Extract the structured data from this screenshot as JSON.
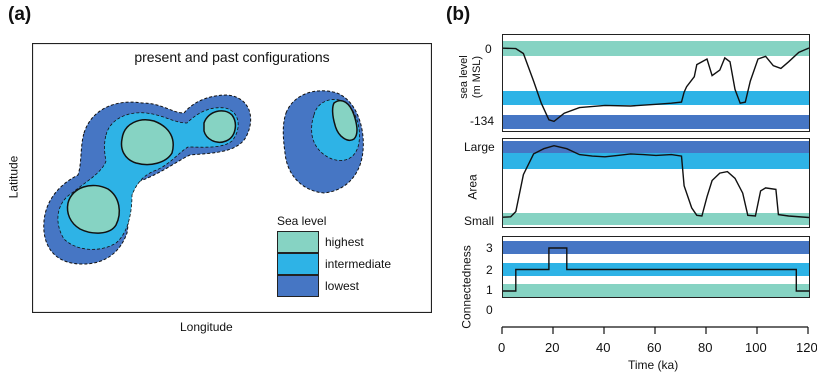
{
  "panel_a": {
    "label": "(a)",
    "title": "present and past configurations",
    "xlabel": "Longitude",
    "ylabel": "Latitude",
    "legend": {
      "title": "Sea level",
      "items": [
        {
          "label": "highest",
          "color": "#86d3c3"
        },
        {
          "label": "intermediate",
          "color": "#2eb3e6"
        },
        {
          "label": "lowest",
          "color": "#4676c4"
        }
      ]
    }
  },
  "panel_b": {
    "label": "(b)",
    "colors": {
      "highest": "#86d3c3",
      "intermediate": "#2eb3e6",
      "lowest": "#4676c4"
    },
    "xlabel": "Time (ka)",
    "xticks": [
      "0",
      "20",
      "40",
      "60",
      "80",
      "100",
      "120"
    ],
    "xlim": [
      0,
      120
    ],
    "sea_level": {
      "ylabel_line1": "sea level",
      "ylabel_line2": "(m MSL)",
      "ticks": [
        "0",
        "-134"
      ],
      "ylim": [
        -134,
        0
      ],
      "series": [
        [
          -2,
          0
        ],
        [
          5,
          -1
        ],
        [
          8,
          -10
        ],
        [
          12,
          -60
        ],
        [
          15,
          -100
        ],
        [
          18,
          -130
        ],
        [
          20,
          -133
        ],
        [
          24,
          -118
        ],
        [
          30,
          -108
        ],
        [
          40,
          -104
        ],
        [
          50,
          -105
        ],
        [
          60,
          -102
        ],
        [
          66,
          -100
        ],
        [
          70,
          -98
        ],
        [
          71,
          -80
        ],
        [
          72,
          -70
        ],
        [
          75,
          -52
        ],
        [
          76,
          -30
        ],
        [
          80,
          -20
        ],
        [
          82,
          -50
        ],
        [
          85,
          -40
        ],
        [
          87,
          -18
        ],
        [
          89,
          -25
        ],
        [
          91,
          -75
        ],
        [
          93,
          -100
        ],
        [
          95,
          -98
        ],
        [
          97,
          -60
        ],
        [
          100,
          -20
        ],
        [
          103,
          -15
        ],
        [
          106,
          -32
        ],
        [
          109,
          -37
        ],
        [
          112,
          -25
        ],
        [
          116,
          -8
        ],
        [
          120,
          0
        ]
      ]
    },
    "area": {
      "ylabel": "Area",
      "ticks": [
        "Large",
        "Small"
      ],
      "series": [
        [
          -2,
          0.02
        ],
        [
          3,
          0.03
        ],
        [
          5,
          0.1
        ],
        [
          8,
          0.6
        ],
        [
          12,
          0.88
        ],
        [
          16,
          0.95
        ],
        [
          20,
          0.99
        ],
        [
          25,
          0.95
        ],
        [
          30,
          0.87
        ],
        [
          35,
          0.85
        ],
        [
          40,
          0.84
        ],
        [
          45,
          0.86
        ],
        [
          50,
          0.88
        ],
        [
          55,
          0.87
        ],
        [
          60,
          0.86
        ],
        [
          66,
          0.87
        ],
        [
          70,
          0.85
        ],
        [
          71,
          0.45
        ],
        [
          74,
          0.15
        ],
        [
          76,
          0.05
        ],
        [
          78,
          0.04
        ],
        [
          80,
          0.3
        ],
        [
          82,
          0.52
        ],
        [
          85,
          0.62
        ],
        [
          88,
          0.64
        ],
        [
          91,
          0.55
        ],
        [
          94,
          0.35
        ],
        [
          96,
          0.05
        ],
        [
          99,
          0.04
        ],
        [
          101,
          0.38
        ],
        [
          103,
          0.42
        ],
        [
          107,
          0.4
        ],
        [
          108,
          0.06
        ],
        [
          112,
          0.04
        ],
        [
          120,
          0.02
        ]
      ]
    },
    "connectedness": {
      "ylabel": "Connectedness",
      "ticks": [
        "3",
        "2",
        "1",
        "0"
      ],
      "ylim": [
        0,
        3
      ],
      "series": [
        [
          -2,
          1
        ],
        [
          5,
          1
        ],
        [
          5,
          2
        ],
        [
          18,
          2
        ],
        [
          18,
          3
        ],
        [
          25,
          3
        ],
        [
          25,
          2
        ],
        [
          115,
          2
        ],
        [
          115,
          1
        ],
        [
          120,
          1
        ]
      ]
    }
  }
}
